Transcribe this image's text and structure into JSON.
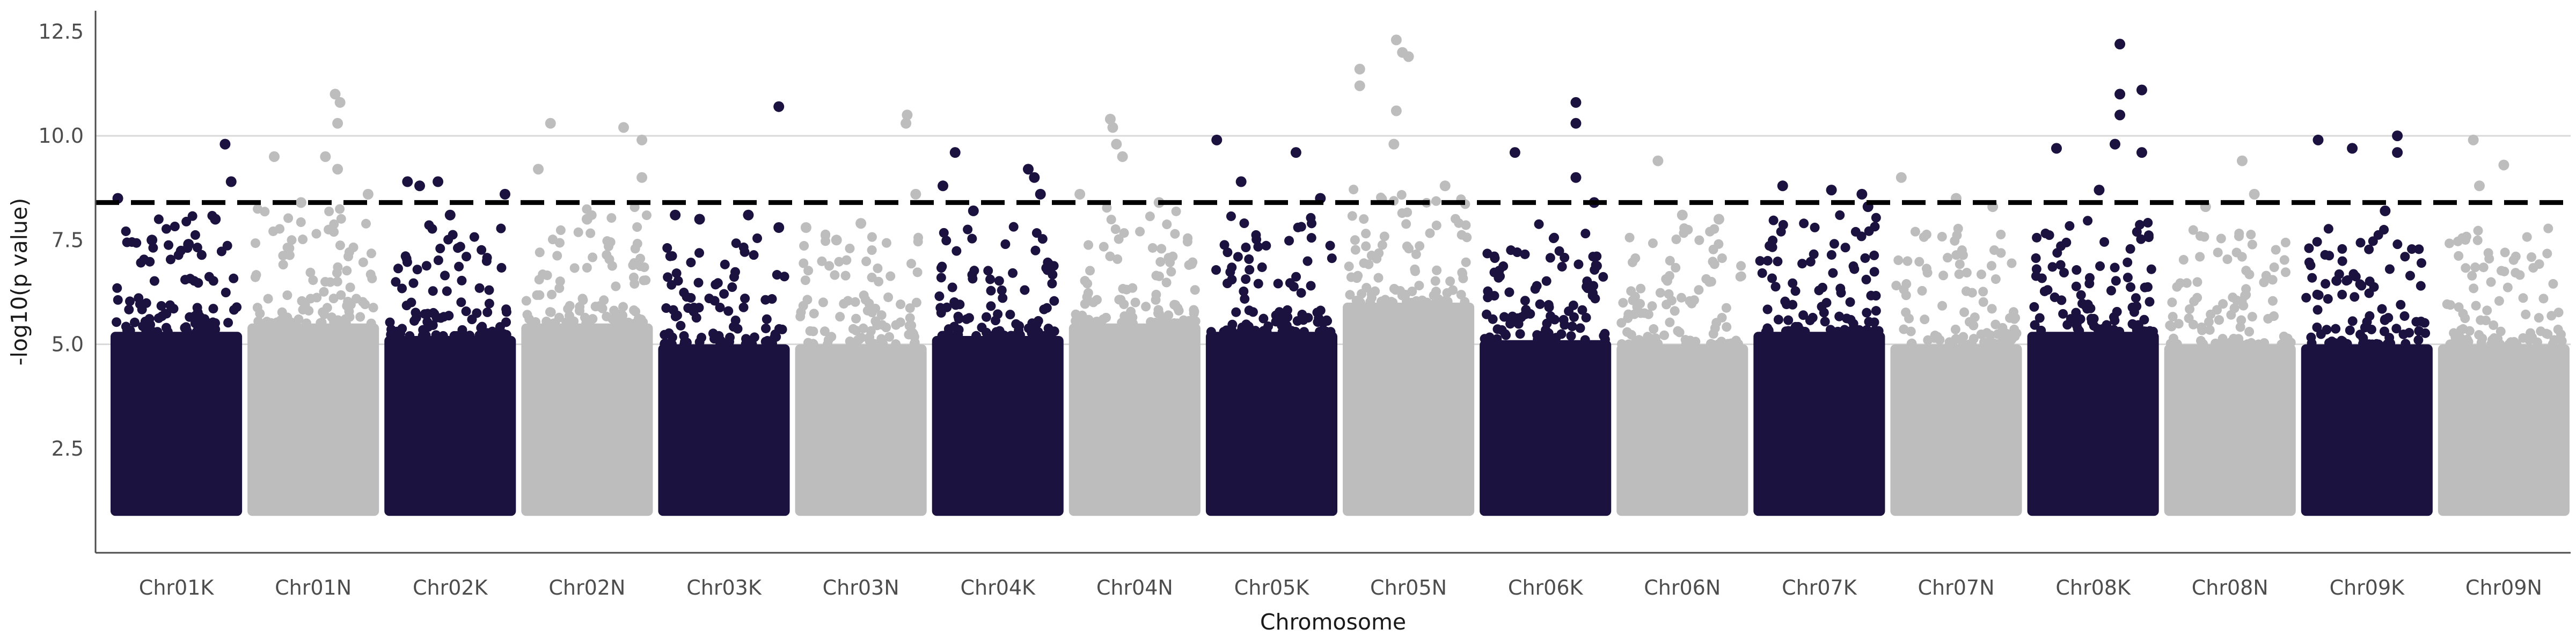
{
  "chart_data": {
    "type": "scatter",
    "title": "",
    "xlabel": "Chromosome",
    "ylabel": "-log10(p value)",
    "ylim": [
      0.0,
      13.0
    ],
    "yticks": [
      2.5,
      5.0,
      7.5,
      10.0,
      12.5
    ],
    "ytick_labels": [
      "2.5",
      "5.0",
      "7.5",
      "10.0",
      "12.5"
    ],
    "grid": true,
    "legend": "none",
    "significance_threshold": 8.4,
    "colors": {
      "dark": "#1c1240",
      "light": "#bdbdbd",
      "threshold": "#000000",
      "grid": "#d9d9d9"
    },
    "categories": [
      "Chr01K",
      "Chr01N",
      "Chr02K",
      "Chr02N",
      "Chr03K",
      "Chr03N",
      "Chr04K",
      "Chr04N",
      "Chr05K",
      "Chr05N",
      "Chr06K",
      "Chr06N",
      "Chr07K",
      "Chr07N",
      "Chr08K",
      "Chr08N",
      "Chr09K",
      "Chr09N"
    ],
    "series": [
      {
        "chromosome": "Chr01K",
        "color": "dark",
        "baseline_max": 5.3,
        "top_points": [
          [
            0.02,
            8.5
          ],
          [
            0.9,
            9.8
          ],
          [
            0.82,
            8.0
          ],
          [
            0.95,
            8.9
          ],
          [
            0.3,
            7.5
          ],
          [
            0.6,
            7.4
          ]
        ]
      },
      {
        "chromosome": "Chr01N",
        "color": "light",
        "baseline_max": 5.5,
        "top_points": [
          [
            0.18,
            9.5
          ],
          [
            0.4,
            8.4
          ],
          [
            0.6,
            9.5
          ],
          [
            0.68,
            11.0
          ],
          [
            0.72,
            10.8
          ],
          [
            0.7,
            10.3
          ],
          [
            0.7,
            9.2
          ],
          [
            0.95,
            8.6
          ]
        ]
      },
      {
        "chromosome": "Chr02K",
        "color": "dark",
        "baseline_max": 5.2,
        "top_points": [
          [
            0.15,
            8.9
          ],
          [
            0.25,
            8.8
          ],
          [
            0.4,
            8.9
          ],
          [
            0.95,
            8.6
          ],
          [
            0.5,
            8.1
          ]
        ]
      },
      {
        "chromosome": "Chr02N",
        "color": "light",
        "baseline_max": 5.5,
        "top_points": [
          [
            0.1,
            9.2
          ],
          [
            0.2,
            10.3
          ],
          [
            0.5,
            8.0
          ],
          [
            0.8,
            10.2
          ],
          [
            0.95,
            9.9
          ],
          [
            0.95,
            9.0
          ]
        ]
      },
      {
        "chromosome": "Chr03K",
        "color": "dark",
        "baseline_max": 5.0,
        "top_points": [
          [
            0.1,
            8.1
          ],
          [
            0.3,
            8.0
          ],
          [
            0.7,
            8.1
          ],
          [
            0.95,
            10.7
          ],
          [
            0.95,
            7.8
          ]
        ]
      },
      {
        "chromosome": "Chr03N",
        "color": "light",
        "baseline_max": 5.0,
        "top_points": [
          [
            0.05,
            7.8
          ],
          [
            0.3,
            7.5
          ],
          [
            0.5,
            7.9
          ],
          [
            0.88,
            10.5
          ],
          [
            0.87,
            10.3
          ],
          [
            0.95,
            8.6
          ]
        ]
      },
      {
        "chromosome": "Chr04K",
        "color": "dark",
        "baseline_max": 5.2,
        "top_points": [
          [
            0.05,
            8.8
          ],
          [
            0.15,
            9.6
          ],
          [
            0.3,
            8.2
          ],
          [
            0.75,
            9.2
          ],
          [
            0.8,
            9.0
          ],
          [
            0.85,
            8.6
          ]
        ]
      },
      {
        "chromosome": "Chr04N",
        "color": "light",
        "baseline_max": 5.5,
        "top_points": [
          [
            0.3,
            10.4
          ],
          [
            0.32,
            10.2
          ],
          [
            0.35,
            9.8
          ],
          [
            0.4,
            9.5
          ],
          [
            0.05,
            8.6
          ],
          [
            0.7,
            8.4
          ]
        ]
      },
      {
        "chromosome": "Chr05K",
        "color": "dark",
        "baseline_max": 5.3,
        "top_points": [
          [
            0.05,
            9.9
          ],
          [
            0.25,
            8.9
          ],
          [
            0.7,
            9.6
          ],
          [
            0.9,
            8.5
          ]
        ]
      },
      {
        "chromosome": "Chr05N",
        "color": "light",
        "baseline_max": 6.0,
        "top_points": [
          [
            0.1,
            11.6
          ],
          [
            0.1,
            11.2
          ],
          [
            0.4,
            12.3
          ],
          [
            0.45,
            12.0
          ],
          [
            0.5,
            11.9
          ],
          [
            0.4,
            10.6
          ],
          [
            0.38,
            9.8
          ],
          [
            0.8,
            8.8
          ]
        ]
      },
      {
        "chromosome": "Chr06K",
        "color": "dark",
        "baseline_max": 5.1,
        "top_points": [
          [
            0.25,
            9.6
          ],
          [
            0.75,
            10.8
          ],
          [
            0.75,
            10.3
          ],
          [
            0.75,
            9.0
          ],
          [
            0.9,
            8.4
          ]
        ]
      },
      {
        "chromosome": "Chr06N",
        "color": "light",
        "baseline_max": 5.0,
        "top_points": [
          [
            0.3,
            9.4
          ],
          [
            0.5,
            8.1
          ],
          [
            0.8,
            8.0
          ]
        ]
      },
      {
        "chromosome": "Chr07K",
        "color": "dark",
        "baseline_max": 5.3,
        "top_points": [
          [
            0.2,
            8.8
          ],
          [
            0.6,
            8.7
          ],
          [
            0.9,
            8.3
          ],
          [
            0.85,
            8.6
          ]
        ]
      },
      {
        "chromosome": "Chr07N",
        "color": "light",
        "baseline_max": 5.0,
        "top_points": [
          [
            0.05,
            9.0
          ],
          [
            0.5,
            8.5
          ],
          [
            0.8,
            8.3
          ]
        ]
      },
      {
        "chromosome": "Chr08K",
        "color": "dark",
        "baseline_max": 5.3,
        "top_points": [
          [
            0.2,
            9.7
          ],
          [
            0.72,
            12.2
          ],
          [
            0.72,
            11.0
          ],
          [
            0.72,
            10.5
          ],
          [
            0.68,
            9.8
          ],
          [
            0.9,
            11.1
          ],
          [
            0.9,
            9.6
          ],
          [
            0.55,
            8.7
          ]
        ]
      },
      {
        "chromosome": "Chr08N",
        "color": "light",
        "baseline_max": 5.0,
        "top_points": [
          [
            0.3,
            8.3
          ],
          [
            0.6,
            9.4
          ],
          [
            0.7,
            8.6
          ]
        ]
      },
      {
        "chromosome": "Chr09K",
        "color": "dark",
        "baseline_max": 5.0,
        "top_points": [
          [
            0.1,
            9.9
          ],
          [
            0.38,
            9.7
          ],
          [
            0.75,
            10.0
          ],
          [
            0.75,
            9.6
          ],
          [
            0.65,
            8.2
          ]
        ]
      },
      {
        "chromosome": "Chr09N",
        "color": "light",
        "baseline_max": 5.0,
        "top_points": [
          [
            0.25,
            9.9
          ],
          [
            0.5,
            9.3
          ],
          [
            0.3,
            8.8
          ]
        ]
      }
    ]
  }
}
